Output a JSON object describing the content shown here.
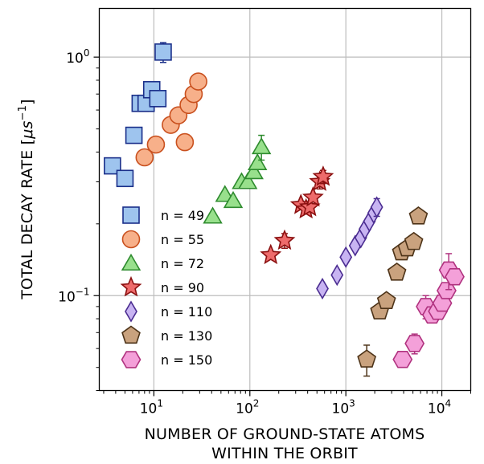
{
  "chart_data": {
    "type": "scatter",
    "xlabel_line1": "NUMBER OF GROUND-STATE ATOMS",
    "xlabel_line2": "WITHIN THE ORBIT",
    "ylabel_text": "TOTAL DECAY RATE [",
    "ylabel_unit": "μs",
    "ylabel_exp": "−1",
    "ylabel_close": "]",
    "x_scale": "log",
    "y_scale": "log",
    "xlim": [
      2.7,
      20000
    ],
    "ylim": [
      0.04,
      1.6
    ],
    "grid": true,
    "legend_position": "left",
    "x_tick_labels": [
      {
        "base": "10",
        "exp": "1",
        "value": 10
      },
      {
        "base": "10",
        "exp": "2",
        "value": 100
      },
      {
        "base": "10",
        "exp": "3",
        "value": 1000
      },
      {
        "base": "10",
        "exp": "4",
        "value": 10000
      }
    ],
    "y_tick_labels": [
      {
        "base": "10",
        "exp": "0",
        "value": 1
      },
      {
        "base": "10",
        "exp": "−1",
        "value": 0.1
      }
    ],
    "series": [
      {
        "name": "n = 49",
        "marker": "square",
        "fill": "#9ec4ee",
        "stroke": "#1a2f8a",
        "points": [
          {
            "x": 3.7,
            "y": 0.35
          },
          {
            "x": 5.0,
            "y": 0.31
          },
          {
            "x": 6.2,
            "y": 0.47
          },
          {
            "x": 7.2,
            "y": 0.64
          },
          {
            "x": 8.3,
            "y": 0.64
          },
          {
            "x": 9.5,
            "y": 0.73,
            "err": 0.04
          },
          {
            "x": 11.0,
            "y": 0.67,
            "err": 0.05
          },
          {
            "x": 12.5,
            "y": 1.05,
            "err": 0.1
          }
        ]
      },
      {
        "name": "n = 55",
        "marker": "circle",
        "fill": "#f7b08a",
        "stroke": "#c9501e",
        "points": [
          {
            "x": 8.0,
            "y": 0.38
          },
          {
            "x": 10.5,
            "y": 0.43
          },
          {
            "x": 15.0,
            "y": 0.52
          },
          {
            "x": 18.0,
            "y": 0.57
          },
          {
            "x": 21.0,
            "y": 0.44
          },
          {
            "x": 23.0,
            "y": 0.63
          },
          {
            "x": 26.0,
            "y": 0.7
          },
          {
            "x": 29.0,
            "y": 0.79
          }
        ]
      },
      {
        "name": "n = 72",
        "marker": "triangle",
        "fill": "#98e08c",
        "stroke": "#2e8b2e",
        "points": [
          {
            "x": 41.0,
            "y": 0.215
          },
          {
            "x": 55.0,
            "y": 0.265
          },
          {
            "x": 67.0,
            "y": 0.25
          },
          {
            "x": 82.0,
            "y": 0.3
          },
          {
            "x": 95.0,
            "y": 0.3
          },
          {
            "x": 110.0,
            "y": 0.33
          },
          {
            "x": 120.0,
            "y": 0.36
          },
          {
            "x": 132.0,
            "y": 0.42,
            "err": 0.05
          }
        ]
      },
      {
        "name": "n = 90",
        "marker": "star",
        "fill": "#ee6b6b",
        "stroke": "#8b1010",
        "points": [
          {
            "x": 165.0,
            "y": 0.148
          },
          {
            "x": 230.0,
            "y": 0.17,
            "err": 0.012
          },
          {
            "x": 340.0,
            "y": 0.24
          },
          {
            "x": 385.0,
            "y": 0.23
          },
          {
            "x": 420.0,
            "y": 0.235
          },
          {
            "x": 455.0,
            "y": 0.258
          },
          {
            "x": 535.0,
            "y": 0.3,
            "err": 0.02
          },
          {
            "x": 580.0,
            "y": 0.315,
            "err": 0.02
          }
        ]
      },
      {
        "name": "n = 110",
        "marker": "diamond",
        "fill": "#c8b4f2",
        "stroke": "#4b2d91",
        "points": [
          {
            "x": 570.0,
            "y": 0.107
          },
          {
            "x": 810.0,
            "y": 0.122
          },
          {
            "x": 1000.0,
            "y": 0.145
          },
          {
            "x": 1250.0,
            "y": 0.162
          },
          {
            "x": 1430.0,
            "y": 0.175
          },
          {
            "x": 1580.0,
            "y": 0.19
          },
          {
            "x": 1760.0,
            "y": 0.205
          },
          {
            "x": 1950.0,
            "y": 0.222
          },
          {
            "x": 2100.0,
            "y": 0.235,
            "err": 0.02
          }
        ]
      },
      {
        "name": "n = 130",
        "marker": "pentagon",
        "fill": "#c9a27e",
        "stroke": "#4d3318",
        "points": [
          {
            "x": 1650.0,
            "y": 0.054,
            "err": 0.008
          },
          {
            "x": 2250.0,
            "y": 0.086
          },
          {
            "x": 2650.0,
            "y": 0.095
          },
          {
            "x": 3400.0,
            "y": 0.125
          },
          {
            "x": 3800.0,
            "y": 0.152
          },
          {
            "x": 4350.0,
            "y": 0.158
          },
          {
            "x": 5100.0,
            "y": 0.168
          },
          {
            "x": 5700.0,
            "y": 0.215
          }
        ]
      },
      {
        "name": "n = 150",
        "marker": "hexagon",
        "fill": "#f4a0d9",
        "stroke": "#b0327f",
        "points": [
          {
            "x": 3900.0,
            "y": 0.054
          },
          {
            "x": 5200.0,
            "y": 0.063,
            "err": 0.006
          },
          {
            "x": 6800.0,
            "y": 0.09,
            "err": 0.01
          },
          {
            "x": 7900.0,
            "y": 0.083
          },
          {
            "x": 9100.0,
            "y": 0.086
          },
          {
            "x": 10100.0,
            "y": 0.093
          },
          {
            "x": 11200.0,
            "y": 0.105
          },
          {
            "x": 11800.0,
            "y": 0.128,
            "err": 0.022
          },
          {
            "x": 13600.0,
            "y": 0.12
          }
        ]
      }
    ]
  }
}
